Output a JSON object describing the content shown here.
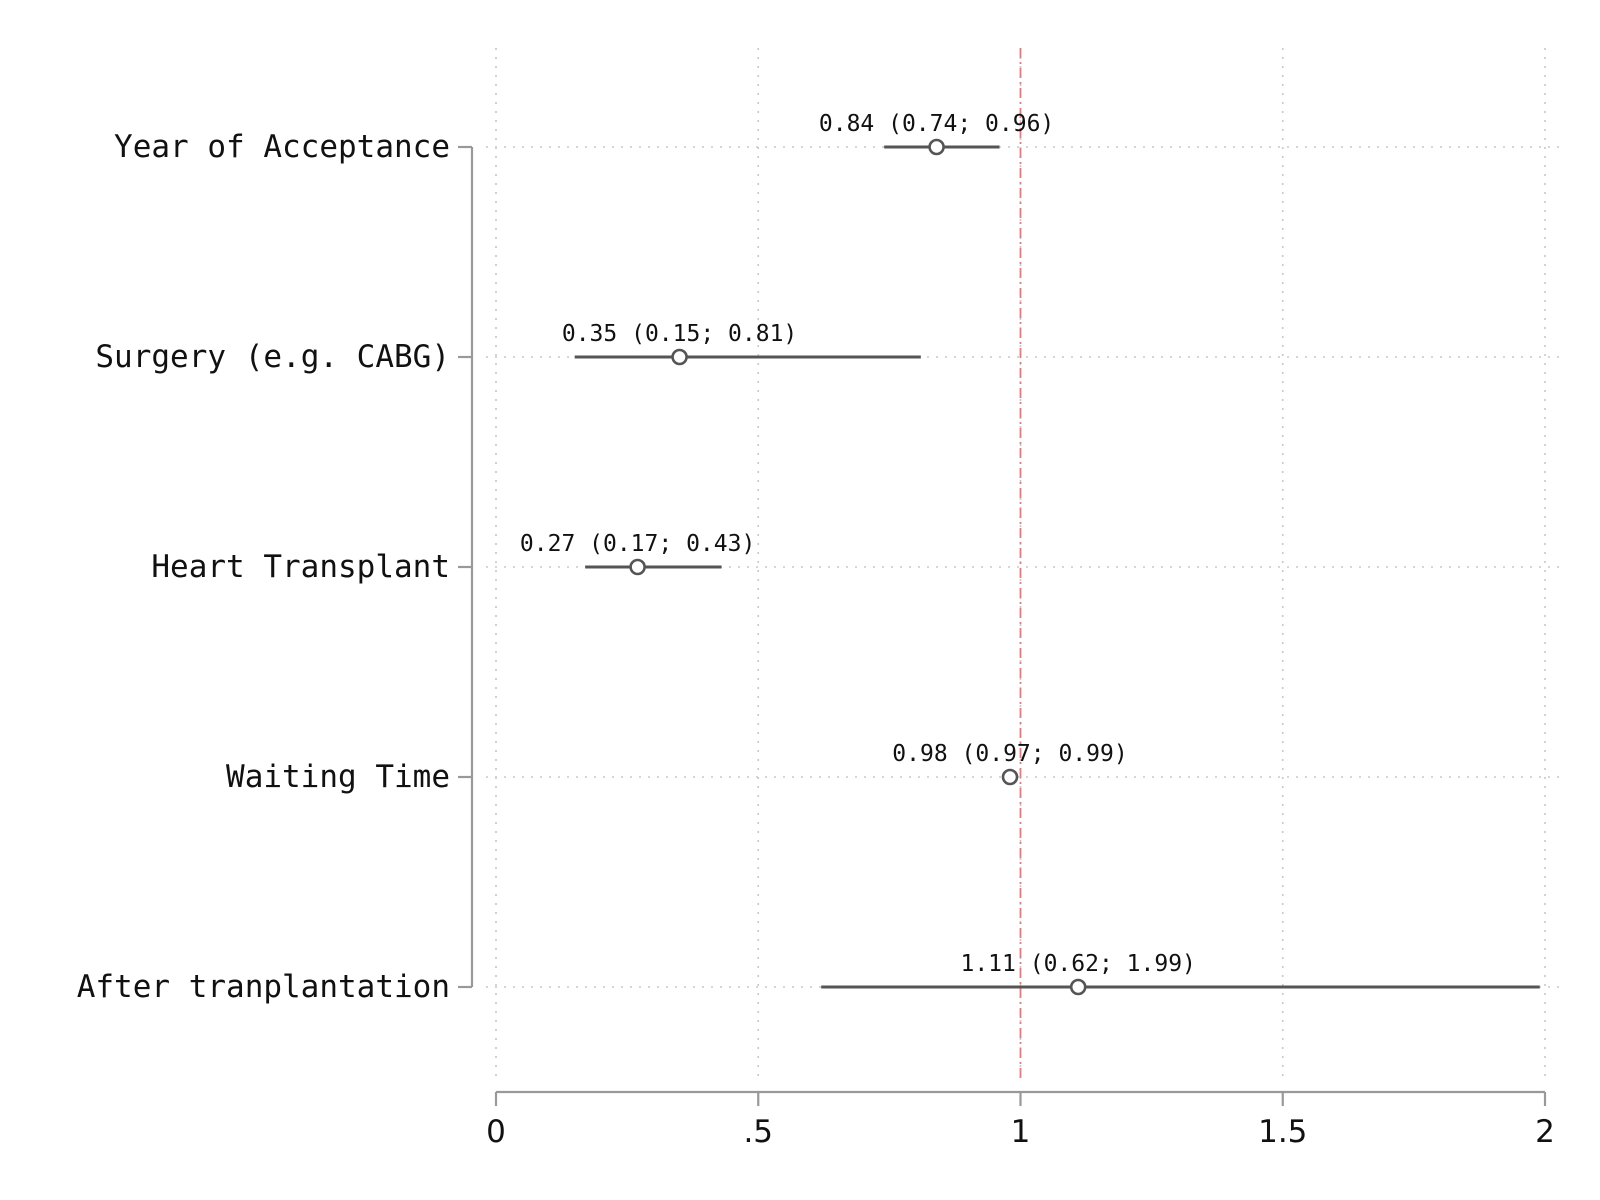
{
  "chart_data": {
    "type": "scatter",
    "title": "",
    "xlabel": "",
    "ylabel": "",
    "xlim": [
      0,
      2
    ],
    "xticks": [
      {
        "value": 0,
        "label": "0"
      },
      {
        "value": 0.5,
        "label": ".5"
      },
      {
        "value": 1,
        "label": "1"
      },
      {
        "value": 1.5,
        "label": "1.5"
      },
      {
        "value": 2,
        "label": "2"
      }
    ],
    "reference_line": {
      "x": 1,
      "color": "#e8787a",
      "style": "dash-dot"
    },
    "grid": true,
    "rows": [
      {
        "label": "Year of Acceptance",
        "estimate": 0.84,
        "lower": 0.74,
        "upper": 0.96,
        "text": "0.84 (0.74; 0.96)"
      },
      {
        "label": "Surgery (e.g. CABG)",
        "estimate": 0.35,
        "lower": 0.15,
        "upper": 0.81,
        "text": "0.35 (0.15; 0.81)"
      },
      {
        "label": "Heart Transplant",
        "estimate": 0.27,
        "lower": 0.17,
        "upper": 0.43,
        "text": "0.27 (0.17; 0.43)"
      },
      {
        "label": "Waiting Time",
        "estimate": 0.98,
        "lower": 0.97,
        "upper": 0.99,
        "text": "0.98 (0.97; 0.99)"
      },
      {
        "label": "After tranplantation",
        "estimate": 1.11,
        "lower": 0.62,
        "upper": 1.99,
        "text": "1.11 (0.62; 1.99)"
      }
    ],
    "colors": {
      "marker": "#555555",
      "ci_line": "#555555",
      "axis": "#999999",
      "grid": "#c8c8c8",
      "text": "#111111"
    }
  }
}
